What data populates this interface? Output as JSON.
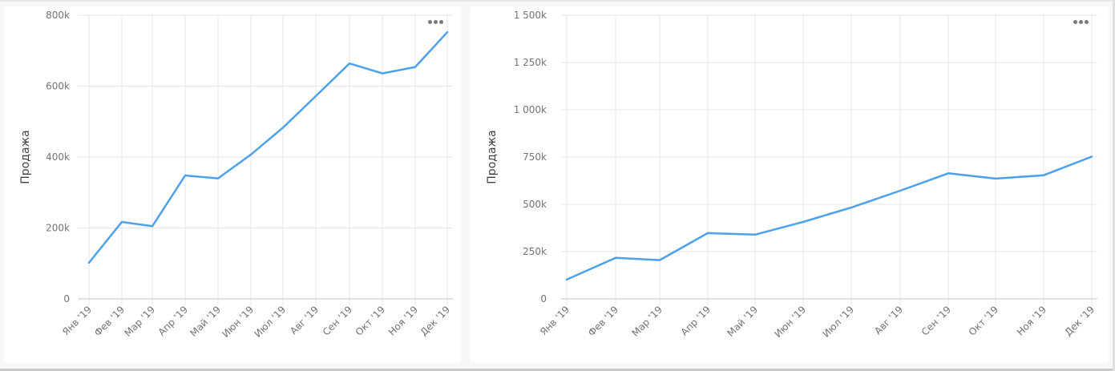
{
  "colors": {
    "line": "#4da1ea",
    "grid": "#e6e6e6",
    "axis": "#c2c2c2",
    "tick_text": "#737373",
    "axis_title": "#404040"
  },
  "charts": [
    {
      "id": "left",
      "menu_icon": "more-horizontal-icon",
      "ylabel": "Продажа",
      "y_ticks": [
        "0",
        "200k",
        "400k",
        "600k",
        "800k"
      ]
    },
    {
      "id": "right",
      "menu_icon": "more-horizontal-icon",
      "ylabel": "Продажа",
      "y_ticks": [
        "0",
        "250k",
        "500k",
        "750k",
        "1 000k",
        "1 250k",
        "1 500k"
      ]
    }
  ],
  "chart_data": [
    {
      "type": "line",
      "title": "",
      "xlabel": "",
      "ylabel": "Продажа",
      "categories": [
        "Янв '19",
        "Фев '19",
        "Мар '19",
        "Апр '19",
        "Май '19",
        "Июн '19",
        "Июл '19",
        "Авг '19",
        "Сен '19",
        "Окт '19",
        "Ноя '19",
        "Дек '19"
      ],
      "series": [
        {
          "name": "Продажа",
          "values": [
            102000,
            217000,
            205000,
            348000,
            340000,
            407000,
            483000,
            572000,
            664000,
            636000,
            654000,
            752000
          ]
        }
      ],
      "ylim": [
        0,
        800000
      ],
      "y_ticks": [
        0,
        200000,
        400000,
        600000,
        800000
      ],
      "grid": true,
      "legend": "none"
    },
    {
      "type": "line",
      "title": "",
      "xlabel": "",
      "ylabel": "Продажа",
      "categories": [
        "Янв '19",
        "Фев '19",
        "Мар '19",
        "Апр '19",
        "Май '19",
        "Июн '19",
        "Июл '19",
        "Авг '19",
        "Сен '19",
        "Окт '19",
        "Ноя '19",
        "Дек '19"
      ],
      "series": [
        {
          "name": "Продажа",
          "values": [
            102000,
            217000,
            205000,
            348000,
            340000,
            407000,
            483000,
            572000,
            664000,
            636000,
            654000,
            752000
          ]
        }
      ],
      "ylim": [
        0,
        1500000
      ],
      "y_ticks": [
        0,
        250000,
        500000,
        750000,
        1000000,
        1250000,
        1500000
      ],
      "grid": true,
      "legend": "none"
    }
  ]
}
